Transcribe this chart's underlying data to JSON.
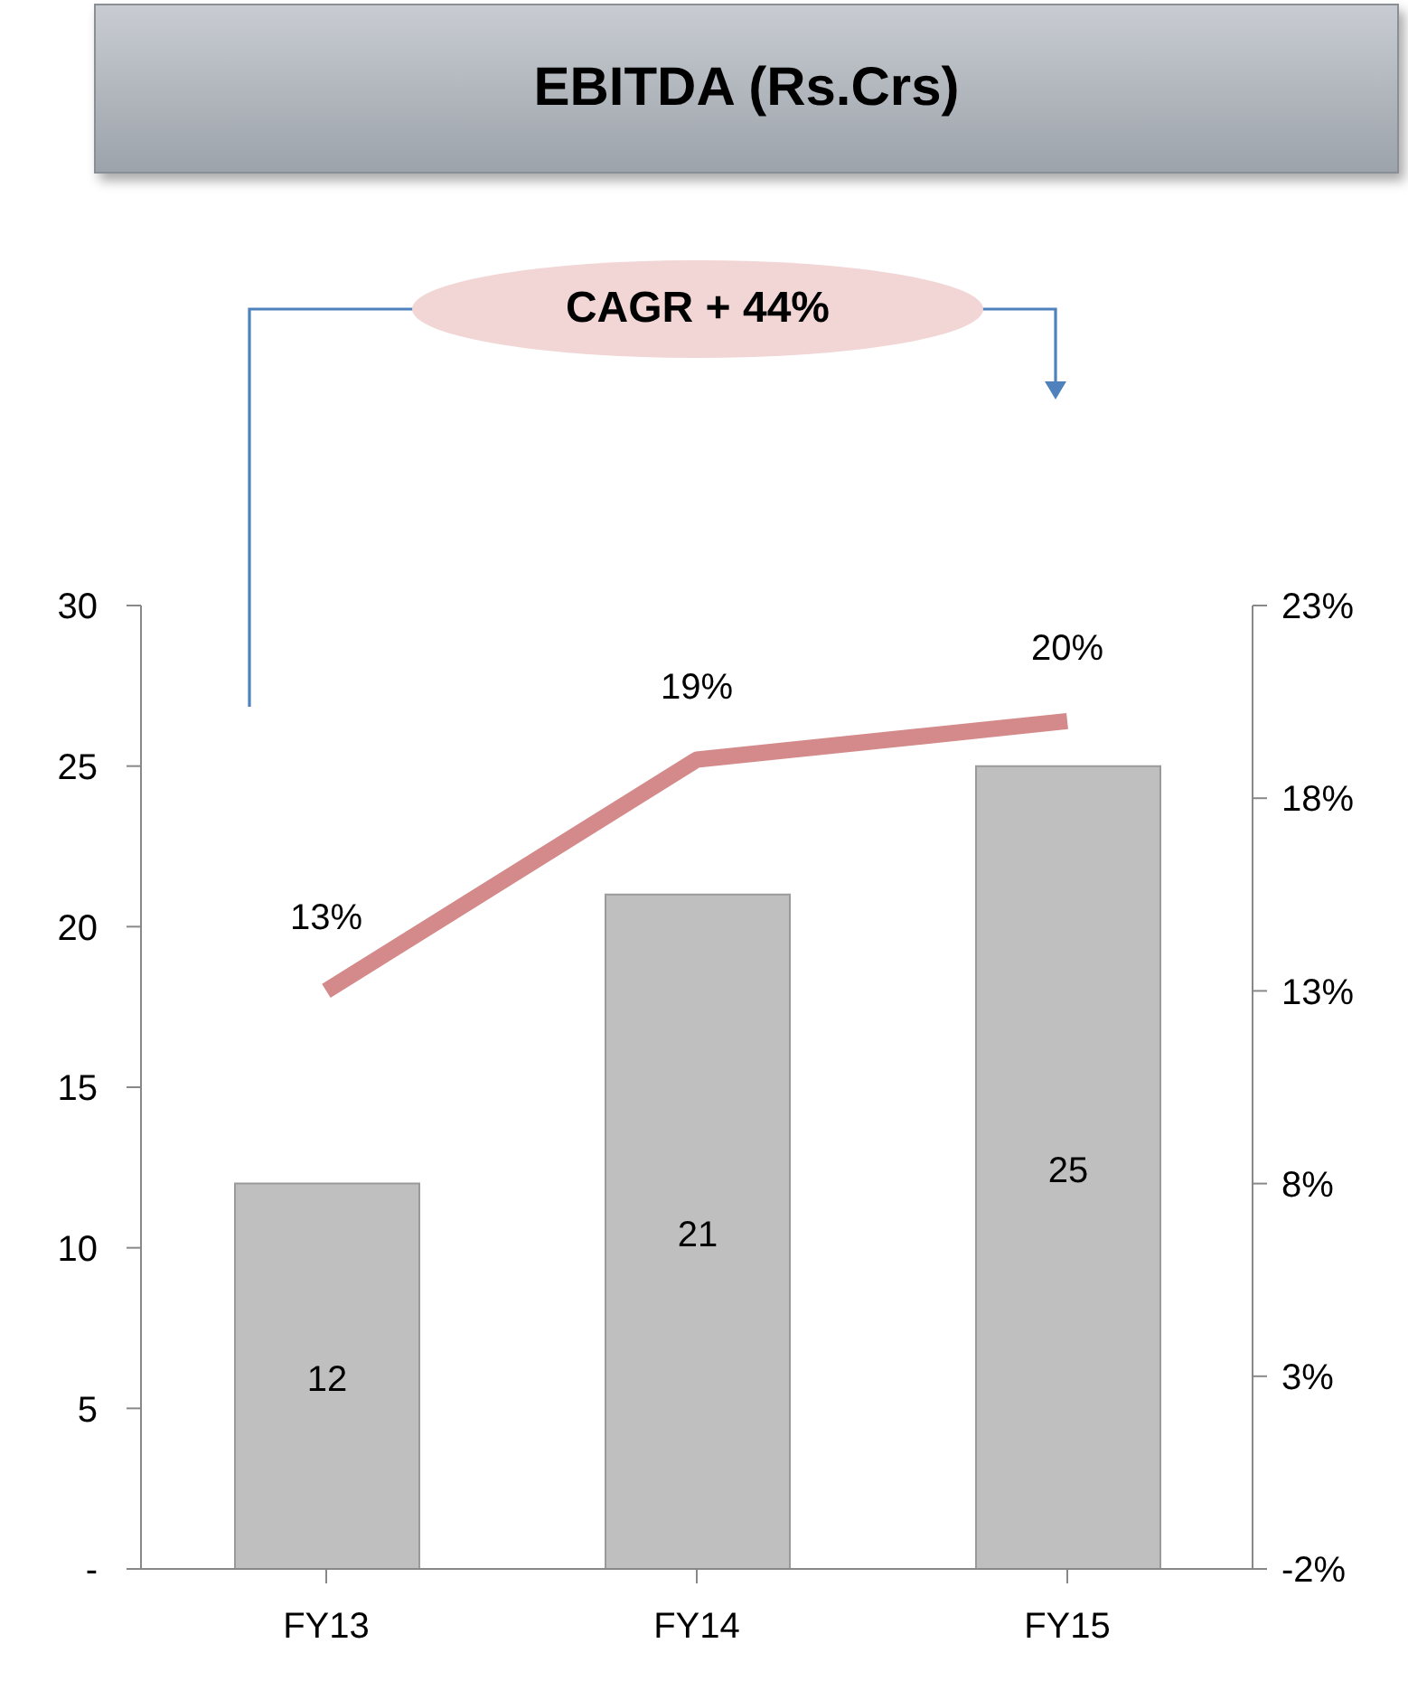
{
  "chart_data": {
    "type": "bar",
    "title": "EBITDA (Rs.Crs)",
    "categories": [
      "FY13",
      "FY14",
      "FY15"
    ],
    "series": [
      {
        "color": "#bfbfbf",
        "values": [
          12,
          21,
          25
        ],
        "value_labels": [
          "12",
          "21",
          "25"
        ]
      },
      {
        "type": "line",
        "axis": "y2",
        "color": "#d48a8a",
        "values": [
          13,
          19,
          20
        ],
        "value_labels": [
          "13%",
          "19%",
          "20%"
        ]
      }
    ],
    "ylim": [
      0,
      30
    ],
    "yticks": [
      {
        "value": 0,
        "label": "-"
      },
      5,
      10,
      15,
      20,
      25,
      30
    ],
    "y2lim": [
      -2,
      23
    ],
    "y2ticks": [
      {
        "value": -2,
        "label": "-2%"
      },
      {
        "value": 3,
        "label": "3%"
      },
      {
        "value": 8,
        "label": "8%"
      },
      {
        "value": 13,
        "label": "13%"
      },
      {
        "value": 18,
        "label": "18%"
      },
      {
        "value": 23,
        "label": "23%"
      }
    ],
    "annotations": [
      "CAGR + 44%"
    ],
    "grid": false,
    "legend": false,
    "marker": "none"
  }
}
